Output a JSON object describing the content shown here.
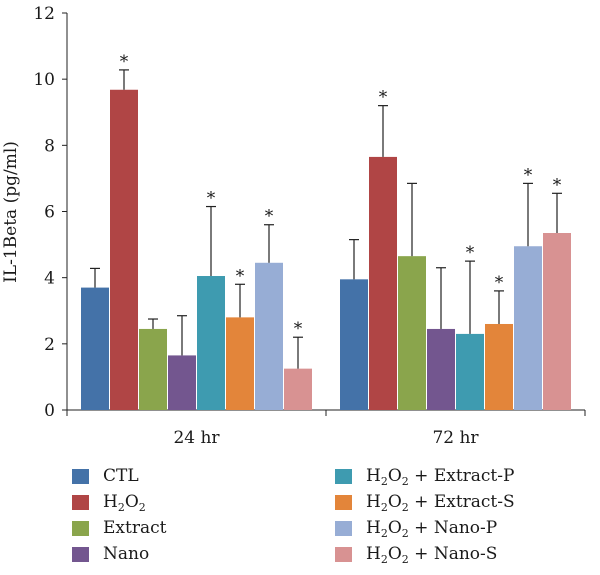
{
  "chart_data": {
    "type": "bar",
    "categories": [
      "24 hr",
      "72 hr"
    ],
    "ylabel": "IL-1Beta (pg/ml)",
    "ylim": [
      0,
      12
    ],
    "yticks": [
      0,
      2,
      4,
      6,
      8,
      10,
      12
    ],
    "grid": false,
    "legend_position": "bottom",
    "significance_marker": "*",
    "series": [
      {
        "name": "CTL",
        "color": "#4472a8",
        "values": [
          3.7,
          3.95
        ],
        "errors": [
          0.58,
          1.2
        ],
        "significant": [
          false,
          false
        ]
      },
      {
        "name": "H2O2",
        "color": "#b04545",
        "values": [
          9.68,
          7.65
        ],
        "errors": [
          0.6,
          1.55
        ],
        "significant": [
          true,
          true
        ]
      },
      {
        "name": "Extract",
        "color": "#8aa54c",
        "values": [
          2.45,
          4.65
        ],
        "errors": [
          0.3,
          2.2
        ],
        "significant": [
          false,
          false
        ]
      },
      {
        "name": "Nano",
        "color": "#73568f",
        "values": [
          1.65,
          2.45
        ],
        "errors": [
          1.2,
          1.85
        ],
        "significant": [
          false,
          false
        ]
      },
      {
        "name": "H2O2 + Extract-P",
        "color": "#3e9bb0",
        "values": [
          4.05,
          2.3
        ],
        "errors": [
          2.1,
          2.2
        ],
        "significant": [
          true,
          true
        ]
      },
      {
        "name": "H2O2 + Extract-S",
        "color": "#e3853a",
        "values": [
          2.8,
          2.6
        ],
        "errors": [
          1.0,
          1.0
        ],
        "significant": [
          true,
          true
        ]
      },
      {
        "name": "H2O2 + Nano-P",
        "color": "#97add5",
        "values": [
          4.45,
          4.95
        ],
        "errors": [
          1.15,
          1.9
        ],
        "significant": [
          true,
          true
        ]
      },
      {
        "name": "H2O2 + Nano-S",
        "color": "#d89292",
        "values": [
          1.25,
          5.35
        ],
        "errors": [
          0.95,
          1.2
        ],
        "significant": [
          true,
          true
        ]
      }
    ]
  },
  "legend": {
    "items": [
      {
        "label": "CTL"
      },
      {
        "label_main": "H",
        "label_sub1": "2",
        "label_mid": "O",
        "label_sub2": "2",
        "label_rest": ""
      },
      {
        "label": "Extract"
      },
      {
        "label": "Nano"
      },
      {
        "label_main": "H",
        "label_sub1": "2",
        "label_mid": "O",
        "label_sub2": "2",
        "label_rest": " + Extract-P"
      },
      {
        "label_main": "H",
        "label_sub1": "2",
        "label_mid": "O",
        "label_sub2": "2",
        "label_rest": " + Extract-S"
      },
      {
        "label_main": "H",
        "label_sub1": "2",
        "label_mid": "O",
        "label_sub2": "2",
        "label_rest": " + Nano-P"
      },
      {
        "label_main": "H",
        "label_sub1": "2",
        "label_mid": "O",
        "label_sub2": "2",
        "label_rest": " + Nano-S"
      }
    ]
  }
}
